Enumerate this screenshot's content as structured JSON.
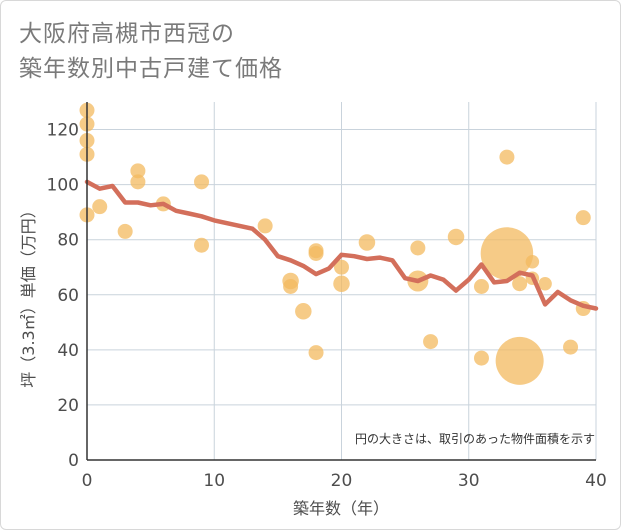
{
  "title_line1": "大阪府高槻市西冠の",
  "title_line2": "築年数別中古戸建て価格",
  "colors": {
    "bubble": "#f3b95f",
    "line": "#d36f5b",
    "grid": "#c9d3dc",
    "axis": "#333333"
  },
  "chart_data": {
    "type": "scatter",
    "title": "大阪府高槻市西冠の築年数別中古戸建て価格",
    "xlabel": "築年数（年）",
    "ylabel": "坪（3.3㎡）単価（万円）",
    "xlim": [
      0,
      40
    ],
    "ylim": [
      0,
      130
    ],
    "xticks": [
      0,
      10,
      20,
      30,
      40
    ],
    "yticks": [
      0,
      20,
      40,
      60,
      80,
      100,
      120
    ],
    "grid": true,
    "annotation": "円の大きさは、取引のあった物件面積を示す",
    "points": [
      {
        "x": 0,
        "y": 127,
        "s": 1
      },
      {
        "x": 0,
        "y": 122,
        "s": 1
      },
      {
        "x": 0,
        "y": 116,
        "s": 1
      },
      {
        "x": 0,
        "y": 111,
        "s": 1
      },
      {
        "x": 0,
        "y": 89,
        "s": 1
      },
      {
        "x": 1,
        "y": 92,
        "s": 1
      },
      {
        "x": 3,
        "y": 83,
        "s": 1
      },
      {
        "x": 4,
        "y": 105,
        "s": 1
      },
      {
        "x": 4,
        "y": 101,
        "s": 1
      },
      {
        "x": 6,
        "y": 93,
        "s": 1
      },
      {
        "x": 9,
        "y": 101,
        "s": 1
      },
      {
        "x": 9,
        "y": 78,
        "s": 1
      },
      {
        "x": 14,
        "y": 85,
        "s": 1
      },
      {
        "x": 16,
        "y": 65,
        "s": 1.1
      },
      {
        "x": 16,
        "y": 63,
        "s": 1
      },
      {
        "x": 17,
        "y": 54,
        "s": 1.1
      },
      {
        "x": 18,
        "y": 76,
        "s": 1
      },
      {
        "x": 18,
        "y": 75,
        "s": 1
      },
      {
        "x": 18,
        "y": 39,
        "s": 1
      },
      {
        "x": 20,
        "y": 70,
        "s": 1
      },
      {
        "x": 20,
        "y": 64,
        "s": 1.1
      },
      {
        "x": 22,
        "y": 79,
        "s": 1.1
      },
      {
        "x": 26,
        "y": 77,
        "s": 1
      },
      {
        "x": 26,
        "y": 65,
        "s": 1.4
      },
      {
        "x": 27,
        "y": 43,
        "s": 1
      },
      {
        "x": 29,
        "y": 81,
        "s": 1.1
      },
      {
        "x": 31,
        "y": 63,
        "s": 1
      },
      {
        "x": 31,
        "y": 37,
        "s": 1
      },
      {
        "x": 33,
        "y": 110,
        "s": 1
      },
      {
        "x": 33,
        "y": 75,
        "s": 3.5
      },
      {
        "x": 34,
        "y": 64,
        "s": 1
      },
      {
        "x": 34,
        "y": 36,
        "s": 3.2
      },
      {
        "x": 35,
        "y": 72,
        "s": 0.9
      },
      {
        "x": 35,
        "y": 66,
        "s": 0.9
      },
      {
        "x": 36,
        "y": 64,
        "s": 0.9
      },
      {
        "x": 38,
        "y": 41,
        "s": 1
      },
      {
        "x": 39,
        "y": 88,
        "s": 1
      },
      {
        "x": 39,
        "y": 55,
        "s": 1
      }
    ],
    "trend": {
      "x": [
        0,
        1,
        2,
        3,
        4,
        5,
        6,
        7,
        8,
        9,
        10,
        11,
        12,
        13,
        14,
        15,
        16,
        17,
        18,
        19,
        20,
        21,
        22,
        23,
        24,
        25,
        26,
        27,
        28,
        29,
        30,
        31,
        32,
        33,
        34,
        35,
        36,
        37,
        38,
        39,
        40
      ],
      "y": [
        101,
        98.5,
        99.5,
        93.5,
        93.5,
        92.5,
        93,
        90.5,
        89.5,
        88.5,
        87,
        86,
        85,
        84,
        80,
        74,
        72.5,
        70.5,
        67.5,
        69.5,
        74.5,
        74,
        73,
        73.5,
        72.5,
        66,
        65,
        67,
        65.5,
        61.5,
        65.5,
        71,
        64.5,
        65,
        68,
        67,
        56.5,
        61,
        58,
        56,
        55
      ]
    }
  }
}
